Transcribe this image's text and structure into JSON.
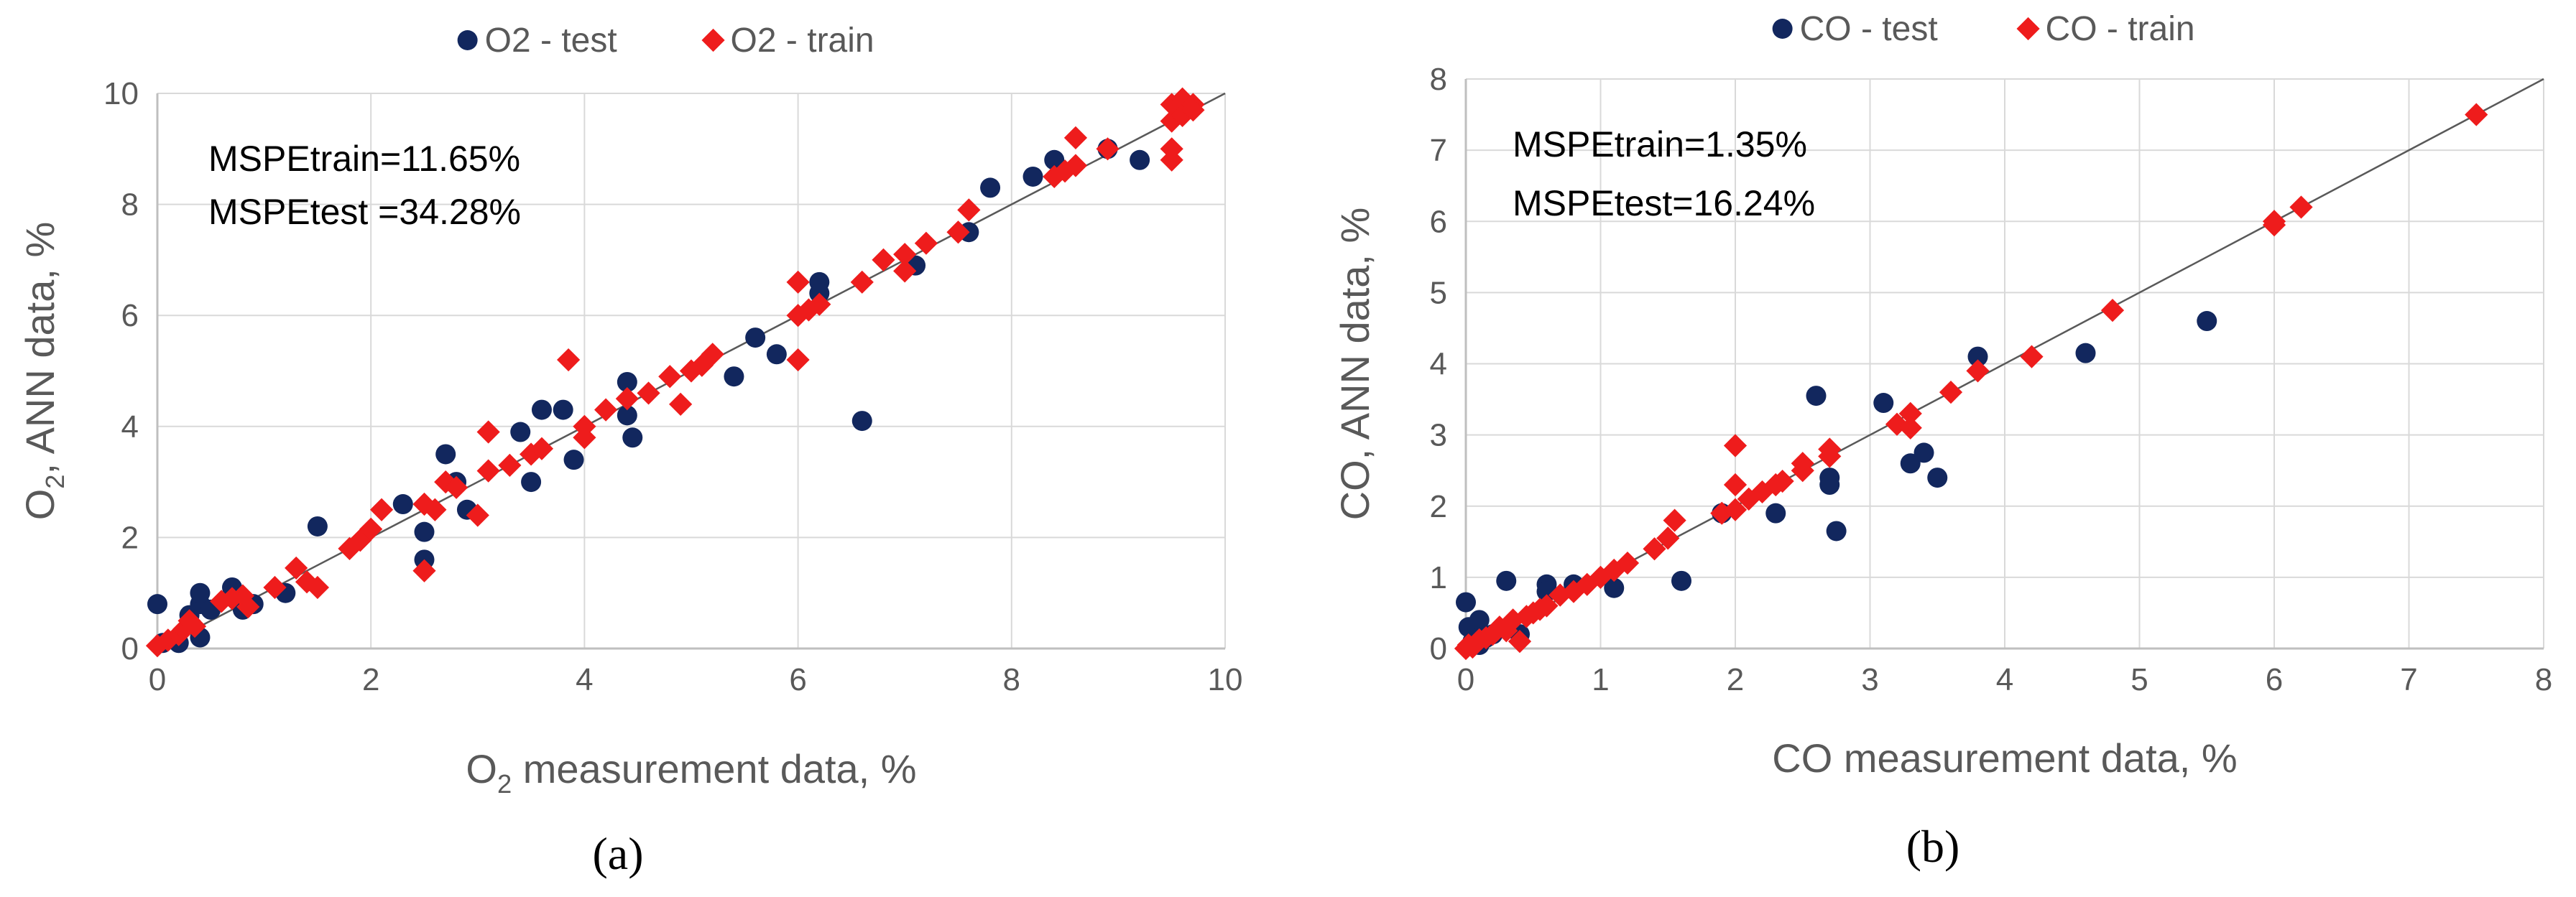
{
  "chart_data": [
    {
      "type": "scatter",
      "panel_label": "(a)",
      "title": "",
      "xlabel_main": "O",
      "xlabel_sub": "2",
      "xlabel_rest": " measurement data, %",
      "ylabel_main": "O",
      "ylabel_sub": "2",
      "ylabel_rest": ", ANN data, %",
      "xlim": [
        0,
        10
      ],
      "ylim": [
        0,
        10
      ],
      "xticks": [
        "0",
        "2",
        "4",
        "6",
        "8",
        "10"
      ],
      "yticks": [
        "0",
        "2",
        "4",
        "6",
        "8",
        "10"
      ],
      "annotation_train": "MSPEtrain=11.65%",
      "annotation_test": "MSPEtest =34.28%",
      "legend_position": "top",
      "reference_line": [
        [
          0,
          0
        ],
        [
          10,
          10
        ]
      ],
      "colors": {
        "test": "#12275e",
        "train": "#ee1c1c",
        "grid": "#d9d9d9",
        "axis": "#bfbfbf",
        "line": "#595959"
      },
      "series": [
        {
          "name": "O2 - test",
          "marker": "circle",
          "points": [
            [
              0.0,
              0.8
            ],
            [
              0.05,
              0.1
            ],
            [
              0.2,
              0.1
            ],
            [
              0.3,
              0.6
            ],
            [
              0.4,
              0.8
            ],
            [
              0.4,
              1.0
            ],
            [
              0.4,
              0.2
            ],
            [
              0.5,
              0.7
            ],
            [
              0.7,
              1.1
            ],
            [
              0.8,
              0.7
            ],
            [
              0.9,
              0.8
            ],
            [
              1.2,
              1.0
            ],
            [
              1.5,
              2.2
            ],
            [
              2.3,
              2.6
            ],
            [
              2.5,
              2.1
            ],
            [
              2.5,
              1.6
            ],
            [
              2.7,
              3.5
            ],
            [
              2.8,
              3.0
            ],
            [
              2.9,
              2.5
            ],
            [
              3.4,
              3.9
            ],
            [
              3.5,
              3.0
            ],
            [
              3.6,
              4.3
            ],
            [
              3.8,
              4.3
            ],
            [
              3.9,
              3.4
            ],
            [
              4.4,
              4.8
            ],
            [
              4.4,
              4.2
            ],
            [
              4.45,
              3.8
            ],
            [
              5.4,
              4.9
            ],
            [
              5.6,
              5.6
            ],
            [
              5.8,
              5.3
            ],
            [
              6.2,
              6.6
            ],
            [
              6.2,
              6.4
            ],
            [
              6.6,
              4.1
            ],
            [
              7.1,
              6.9
            ],
            [
              7.6,
              7.5
            ],
            [
              7.8,
              8.3
            ],
            [
              8.2,
              8.5
            ],
            [
              8.4,
              8.8
            ],
            [
              8.9,
              9.0
            ],
            [
              9.2,
              8.8
            ]
          ]
        },
        {
          "name": "O2 - train",
          "marker": "diamond",
          "points": [
            [
              0.0,
              0.05
            ],
            [
              0.1,
              0.15
            ],
            [
              0.2,
              0.25
            ],
            [
              0.25,
              0.35
            ],
            [
              0.3,
              0.5
            ],
            [
              0.35,
              0.4
            ],
            [
              0.6,
              0.85
            ],
            [
              0.7,
              0.9
            ],
            [
              0.8,
              0.95
            ],
            [
              0.85,
              0.75
            ],
            [
              1.1,
              1.1
            ],
            [
              1.3,
              1.45
            ],
            [
              1.4,
              1.2
            ],
            [
              1.5,
              1.1
            ],
            [
              1.8,
              1.8
            ],
            [
              1.9,
              1.95
            ],
            [
              2.0,
              2.15
            ],
            [
              2.1,
              2.5
            ],
            [
              2.5,
              1.4
            ],
            [
              2.5,
              2.6
            ],
            [
              2.6,
              2.5
            ],
            [
              2.7,
              3.0
            ],
            [
              2.8,
              2.9
            ],
            [
              3.0,
              2.4
            ],
            [
              3.1,
              3.2
            ],
            [
              3.1,
              3.9
            ],
            [
              3.3,
              3.3
            ],
            [
              3.5,
              3.5
            ],
            [
              3.6,
              3.6
            ],
            [
              3.85,
              5.2
            ],
            [
              4.0,
              3.8
            ],
            [
              4.0,
              4.0
            ],
            [
              4.2,
              4.3
            ],
            [
              4.4,
              4.5
            ],
            [
              4.6,
              4.6
            ],
            [
              4.8,
              4.9
            ],
            [
              4.9,
              4.4
            ],
            [
              5.0,
              5.0
            ],
            [
              5.1,
              5.1
            ],
            [
              5.2,
              5.3
            ],
            [
              6.0,
              5.2
            ],
            [
              6.0,
              6.0
            ],
            [
              6.0,
              6.6
            ],
            [
              6.1,
              6.1
            ],
            [
              6.2,
              6.2
            ],
            [
              6.6,
              6.6
            ],
            [
              6.8,
              7.0
            ],
            [
              7.0,
              6.8
            ],
            [
              7.0,
              7.1
            ],
            [
              7.2,
              7.3
            ],
            [
              7.5,
              7.5
            ],
            [
              7.6,
              7.9
            ],
            [
              8.4,
              8.5
            ],
            [
              8.5,
              8.6
            ],
            [
              8.6,
              8.7
            ],
            [
              8.6,
              9.2
            ],
            [
              8.9,
              9.0
            ],
            [
              9.5,
              9.5
            ],
            [
              9.5,
              9.0
            ],
            [
              9.5,
              8.8
            ],
            [
              9.5,
              9.8
            ],
            [
              9.6,
              9.6
            ],
            [
              9.6,
              9.9
            ],
            [
              9.7,
              9.8
            ],
            [
              9.7,
              9.7
            ]
          ]
        }
      ]
    },
    {
      "type": "scatter",
      "panel_label": "(b)",
      "title": "",
      "xlabel_main": "CO measurement data, %",
      "xlabel_sub": "",
      "xlabel_rest": "",
      "ylabel_main": "CO, ANN data, %",
      "ylabel_sub": "",
      "ylabel_rest": "",
      "xlim": [
        0,
        8
      ],
      "ylim": [
        0,
        8
      ],
      "xticks": [
        "0",
        "1",
        "2",
        "3",
        "4",
        "5",
        "6",
        "7",
        "8"
      ],
      "yticks": [
        "0",
        "1",
        "2",
        "3",
        "4",
        "5",
        "6",
        "7",
        "8"
      ],
      "annotation_train": "MSPEtrain=1.35%",
      "annotation_test": "MSPEtest=16.24%",
      "legend_position": "top",
      "reference_line": [
        [
          0,
          0
        ],
        [
          8,
          8
        ]
      ],
      "colors": {
        "test": "#12275e",
        "train": "#ee1c1c",
        "grid": "#d9d9d9",
        "axis": "#bfbfbf",
        "line": "#595959"
      },
      "series": [
        {
          "name": "CO - test",
          "marker": "circle",
          "points": [
            [
              0.0,
              0.65
            ],
            [
              0.02,
              0.3
            ],
            [
              0.05,
              0.1
            ],
            [
              0.08,
              0.2
            ],
            [
              0.1,
              0.4
            ],
            [
              0.1,
              0.05
            ],
            [
              0.15,
              0.15
            ],
            [
              0.2,
              0.2
            ],
            [
              0.3,
              0.95
            ],
            [
              0.4,
              0.2
            ],
            [
              0.6,
              0.9
            ],
            [
              0.6,
              0.8
            ],
            [
              0.8,
              0.9
            ],
            [
              1.1,
              0.85
            ],
            [
              1.6,
              0.95
            ],
            [
              1.9,
              1.9
            ],
            [
              2.3,
              1.9
            ],
            [
              2.6,
              3.55
            ],
            [
              2.7,
              2.4
            ],
            [
              2.7,
              2.3
            ],
            [
              2.75,
              1.65
            ],
            [
              3.1,
              3.45
            ],
            [
              3.3,
              2.6
            ],
            [
              3.4,
              2.75
            ],
            [
              3.5,
              2.4
            ],
            [
              3.8,
              4.1
            ],
            [
              4.6,
              4.15
            ],
            [
              5.5,
              4.6
            ]
          ]
        },
        {
          "name": "CO - train",
          "marker": "diamond",
          "points": [
            [
              0.0,
              0.0
            ],
            [
              0.02,
              0.05
            ],
            [
              0.05,
              0.02
            ],
            [
              0.08,
              0.08
            ],
            [
              0.1,
              0.12
            ],
            [
              0.15,
              0.15
            ],
            [
              0.2,
              0.2
            ],
            [
              0.25,
              0.3
            ],
            [
              0.3,
              0.25
            ],
            [
              0.35,
              0.4
            ],
            [
              0.4,
              0.1
            ],
            [
              0.45,
              0.45
            ],
            [
              0.5,
              0.5
            ],
            [
              0.55,
              0.55
            ],
            [
              0.6,
              0.6
            ],
            [
              0.7,
              0.75
            ],
            [
              0.8,
              0.8
            ],
            [
              0.9,
              0.9
            ],
            [
              1.0,
              1.0
            ],
            [
              1.1,
              1.1
            ],
            [
              1.2,
              1.2
            ],
            [
              1.4,
              1.4
            ],
            [
              1.5,
              1.55
            ],
            [
              1.55,
              1.8
            ],
            [
              1.9,
              1.9
            ],
            [
              2.0,
              1.95
            ],
            [
              2.0,
              2.3
            ],
            [
              2.0,
              2.85
            ],
            [
              2.1,
              2.1
            ],
            [
              2.2,
              2.2
            ],
            [
              2.3,
              2.3
            ],
            [
              2.35,
              2.35
            ],
            [
              2.5,
              2.5
            ],
            [
              2.5,
              2.6
            ],
            [
              2.7,
              2.7
            ],
            [
              2.7,
              2.8
            ],
            [
              3.2,
              3.15
            ],
            [
              3.3,
              3.3
            ],
            [
              3.3,
              3.1
            ],
            [
              3.6,
              3.6
            ],
            [
              3.8,
              3.9
            ],
            [
              4.2,
              4.1
            ],
            [
              4.8,
              4.75
            ],
            [
              6.0,
              6.0
            ],
            [
              6.0,
              5.95
            ],
            [
              6.2,
              6.2
            ],
            [
              7.5,
              7.5
            ]
          ]
        }
      ]
    }
  ]
}
